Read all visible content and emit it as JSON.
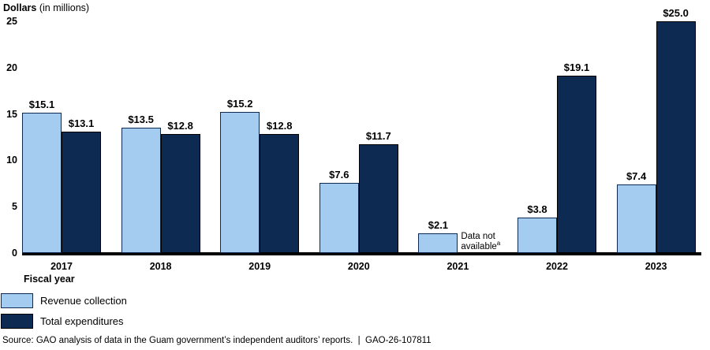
{
  "chart": {
    "title_bold": "Dollars",
    "title_rest": " (in millions)",
    "xlabel": "Fiscal year",
    "source": "Source: GAO analysis of data in the Guam government’s independent auditors’ reports.  |  GAO-26-107811",
    "colors": {
      "revenue": "#a4cbf0",
      "expenditures": "#0d2a52",
      "axis": "#000000"
    }
  },
  "chart_data": {
    "type": "bar",
    "title": "Dollars (in millions)",
    "xlabel": "Fiscal year",
    "ylabel": "",
    "categories": [
      "2017",
      "2018",
      "2019",
      "2020",
      "2021",
      "2022",
      "2023"
    ],
    "series": [
      {
        "name": "Revenue collection",
        "color": "#a4cbf0",
        "values": [
          15.1,
          13.5,
          15.2,
          7.6,
          2.1,
          3.8,
          7.4
        ],
        "labels": [
          "$15.1",
          "$13.5",
          "$15.2",
          "$7.6",
          "$2.1",
          "$3.8",
          "$7.4"
        ]
      },
      {
        "name": "Total expenditures",
        "color": "#0d2a52",
        "values": [
          13.1,
          12.8,
          12.8,
          11.7,
          null,
          19.1,
          25.0
        ],
        "labels": [
          "$13.1",
          "$12.8",
          "$12.8",
          "$11.7",
          null,
          "$19.1",
          "$25.0"
        ]
      }
    ],
    "missing_note": {
      "category": "2021",
      "series": "Total expenditures",
      "line1": "Data not",
      "line2": "available",
      "sup": "a"
    },
    "ylim": [
      0,
      25
    ],
    "yticks": [
      0,
      5,
      10,
      15,
      20,
      25
    ],
    "grid": false,
    "legend_position": "bottom-left"
  },
  "legend": {
    "items": [
      {
        "label": "Revenue collection",
        "color": "#a4cbf0"
      },
      {
        "label": "Total expenditures",
        "color": "#0d2a52"
      }
    ]
  }
}
